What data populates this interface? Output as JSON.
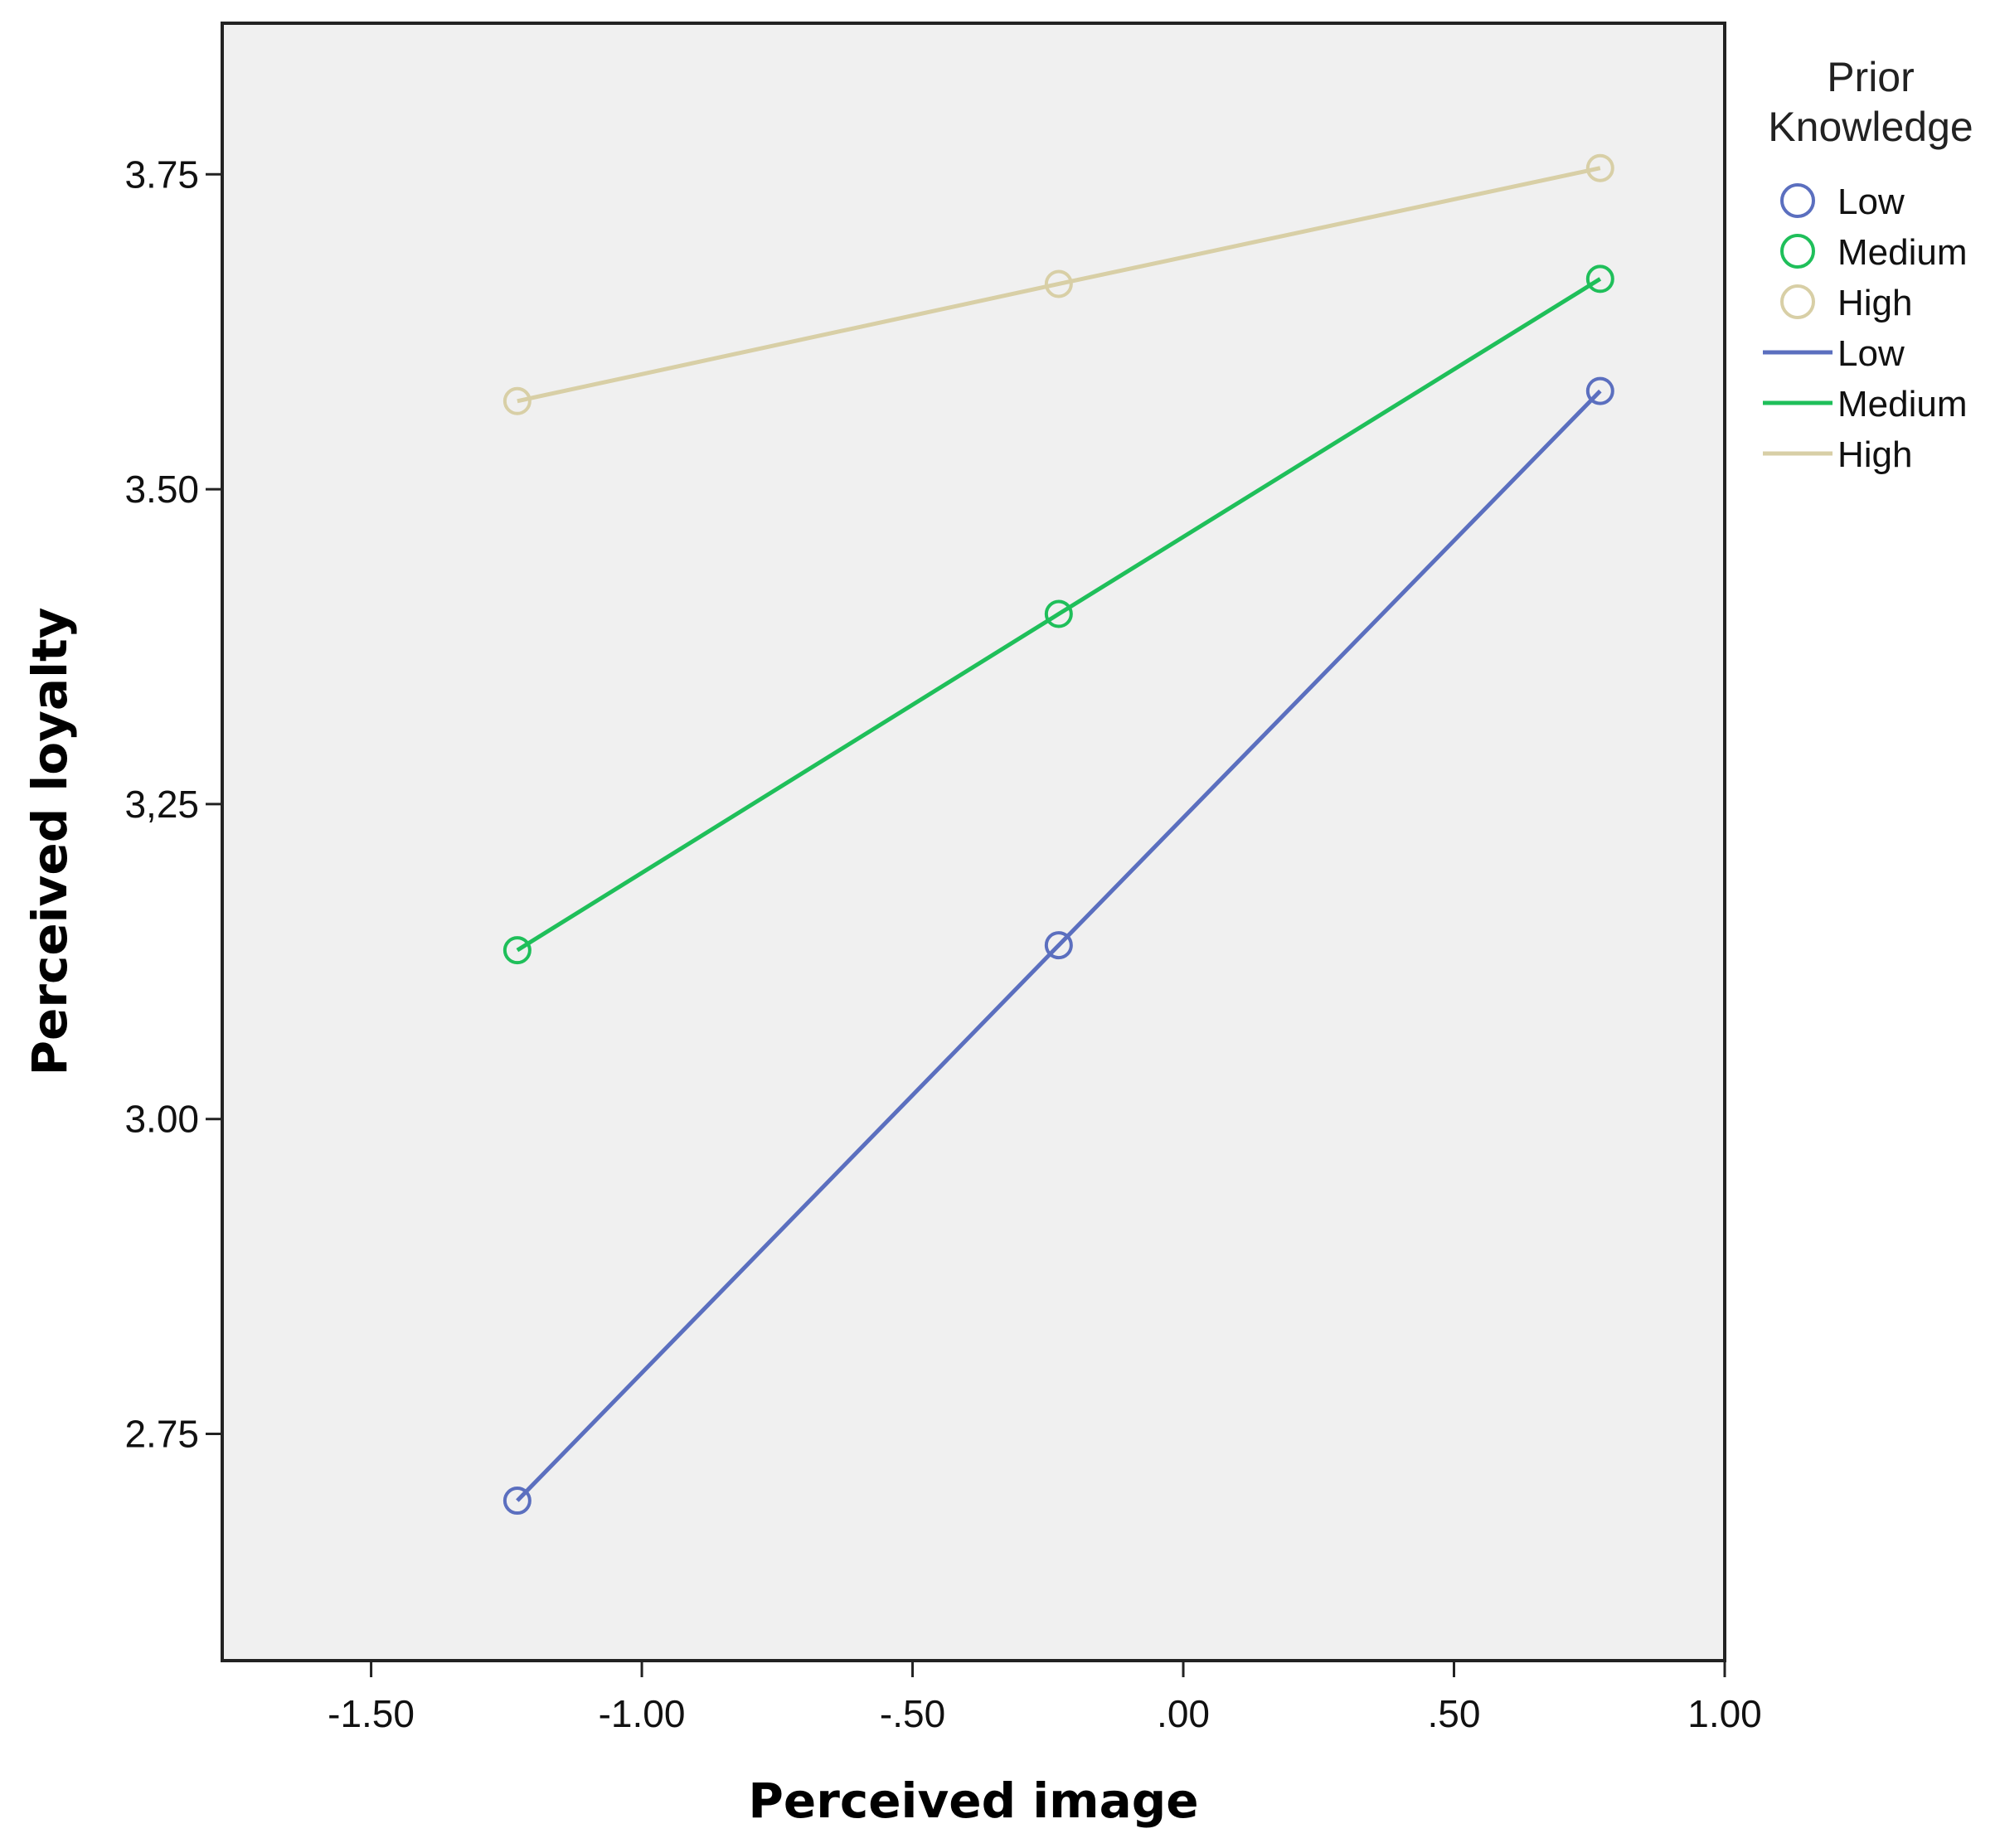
{
  "chart_data": {
    "type": "line",
    "xlabel": "Perceived image",
    "ylabel": "Perceived loyalty",
    "xlim": [
      -1.775,
      1.0
    ],
    "ylim": [
      2.57,
      3.87
    ],
    "x_ticks": [
      -1.5,
      -1.0,
      -0.5,
      0.0,
      0.5,
      1.0
    ],
    "x_tick_labels": [
      "-1.50",
      "-1.00",
      "-.50",
      ".00",
      ".50",
      "1.00"
    ],
    "y_ticks": [
      2.75,
      3.0,
      3.25,
      3.5,
      3.75
    ],
    "y_tick_labels": [
      "2.75",
      "3.00",
      "3,25",
      "3.50",
      "3.75"
    ],
    "grid": false,
    "background": "#f0f0f0",
    "legend": {
      "title": "Prior Knowledge",
      "title_lines": [
        "Prior",
        "Knowledge"
      ],
      "placement": "right",
      "marker_entries": [
        "Low",
        "Medium",
        "High"
      ],
      "line_entries": [
        "Low",
        "Medium",
        "High"
      ]
    },
    "x": [
      -1.23,
      -0.23,
      0.77
    ],
    "series": [
      {
        "name": "Low",
        "color": "#5b6fbf",
        "values": [
          2.697,
          3.138,
          3.578
        ]
      },
      {
        "name": "Medium",
        "color": "#1fbf5a",
        "values": [
          3.134,
          3.401,
          3.667
        ]
      },
      {
        "name": "High",
        "color": "#d8cfa6",
        "values": [
          3.57,
          3.663,
          3.755
        ]
      }
    ]
  }
}
